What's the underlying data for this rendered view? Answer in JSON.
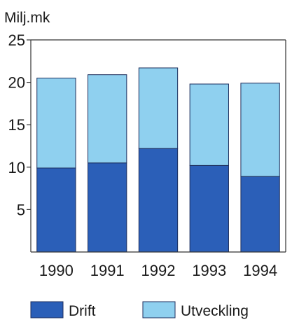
{
  "chart_data": {
    "type": "bar",
    "stacked": true,
    "ylabel": "Milj.mk",
    "categories": [
      "1990",
      "1991",
      "1992",
      "1993",
      "1994"
    ],
    "series": [
      {
        "name": "Drift",
        "values": [
          9.9,
          10.5,
          12.2,
          10.2,
          8.9
        ],
        "color": "#2b5fb8"
      },
      {
        "name": "Utveckling",
        "values": [
          10.6,
          10.4,
          9.5,
          9.6,
          11.0
        ],
        "color": "#8fd0ef"
      }
    ],
    "ylim": [
      0,
      25
    ],
    "yticks": [
      5,
      10,
      15,
      20,
      25
    ],
    "grid": false,
    "legend": "bottom"
  }
}
